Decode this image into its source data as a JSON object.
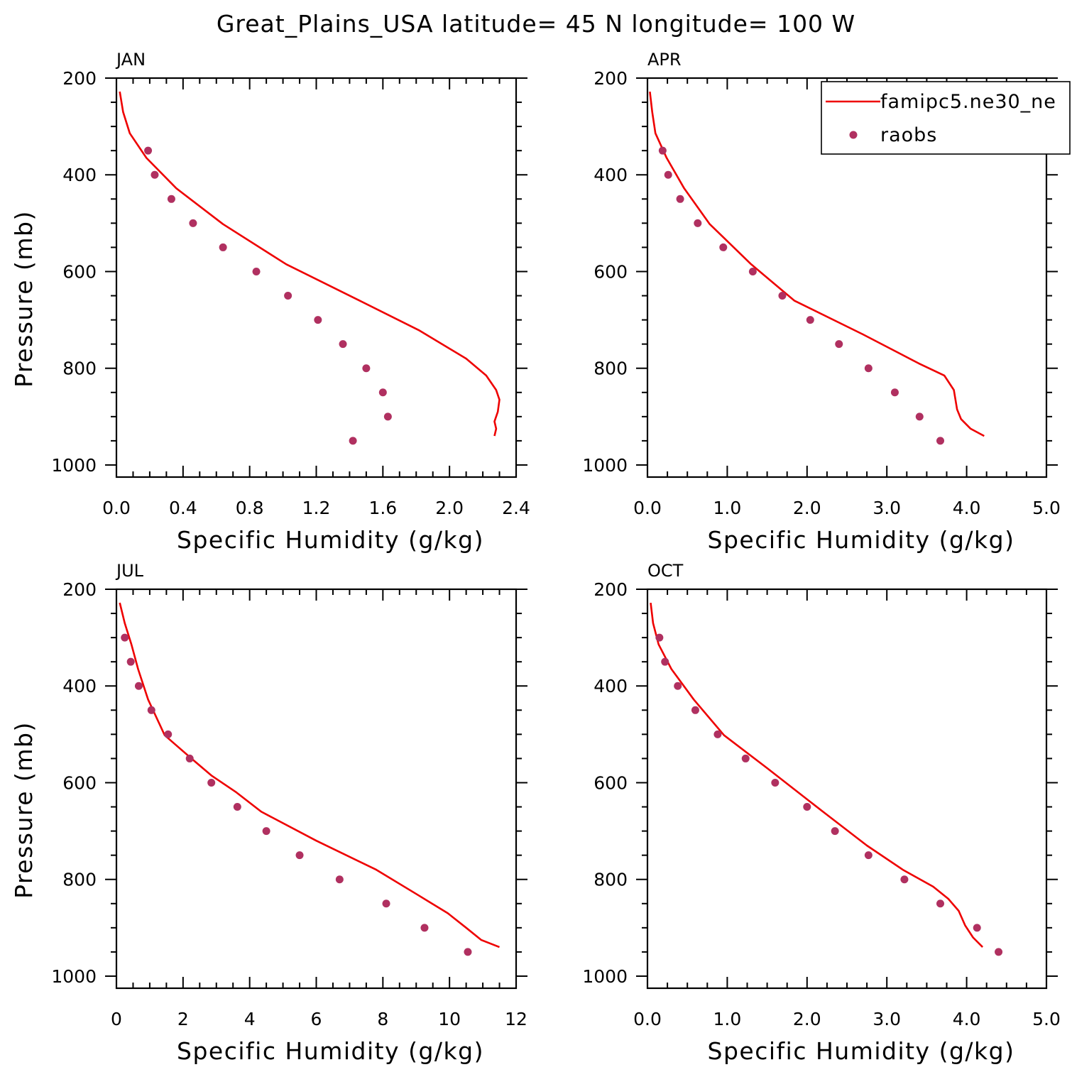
{
  "title": "Great_Plains_USA  latitude= 45 N longitude= 100 W",
  "colors": {
    "model": "#ee0000",
    "obs": "#b03060",
    "axis": "#000000"
  },
  "legend": {
    "placement": "top-right",
    "items": [
      {
        "label": "famipc5.ne30_ne",
        "style": "line"
      },
      {
        "label": "raobs",
        "style": "dot"
      }
    ]
  },
  "chart_data": [
    {
      "type": "line",
      "panel": "JAN",
      "xlabel": "Specific Humidity (g/kg)",
      "ylabel": "Pressure (mb)",
      "xlim": [
        0,
        2.4
      ],
      "ylim": [
        1000,
        200
      ],
      "y_inverted": true,
      "xticks": [
        0,
        0.4,
        0.8,
        1.2,
        1.6,
        2.0,
        2.4
      ],
      "xtick_labels": [
        "0.0",
        "0.4",
        "0.8",
        "1.2",
        "1.6",
        "2.0",
        "2.4"
      ],
      "yticks": [
        200,
        400,
        600,
        800,
        1000
      ],
      "ytick_labels": [
        "200",
        "400",
        "600",
        "800",
        "1000"
      ],
      "series": [
        {
          "name": "famipc5.ne30_ne",
          "kind": "line",
          "x": [
            0.02,
            0.04,
            0.08,
            0.18,
            0.36,
            0.64,
            1.02,
            1.46,
            1.82,
            2.1,
            2.22,
            2.28,
            2.3,
            2.29,
            2.27,
            2.28,
            2.27
          ],
          "y": [
            228,
            270,
            314,
            365,
            428,
            502,
            585,
            660,
            722,
            780,
            815,
            845,
            865,
            890,
            910,
            925,
            940
          ]
        },
        {
          "name": "raobs",
          "kind": "scatter",
          "x": [
            0.19,
            0.23,
            0.33,
            0.46,
            0.64,
            0.84,
            1.03,
            1.21,
            1.36,
            1.5,
            1.6,
            1.63,
            1.42
          ],
          "y": [
            350,
            400,
            450,
            500,
            550,
            600,
            650,
            700,
            750,
            800,
            850,
            900,
            950
          ]
        }
      ]
    },
    {
      "type": "line",
      "panel": "APR",
      "xlabel": "Specific Humidity (g/kg)",
      "ylabel": "",
      "xlim": [
        0,
        5
      ],
      "ylim": [
        1000,
        200
      ],
      "y_inverted": true,
      "xticks": [
        0,
        1,
        2,
        3,
        4,
        5
      ],
      "xtick_labels": [
        "0.0",
        "1.0",
        "2.0",
        "3.0",
        "4.0",
        "5.0"
      ],
      "yticks": [
        200,
        400,
        600,
        800,
        1000
      ],
      "ytick_labels": [
        "200",
        "400",
        "600",
        "800",
        "1000"
      ],
      "series": [
        {
          "name": "famipc5.ne30_ne",
          "kind": "line",
          "x": [
            0.03,
            0.06,
            0.1,
            0.24,
            0.46,
            0.78,
            1.3,
            1.84,
            2.7,
            3.4,
            3.72,
            3.84,
            3.88,
            3.93,
            4.05,
            4.22
          ],
          "y": [
            228,
            270,
            314,
            365,
            428,
            502,
            585,
            660,
            730,
            790,
            815,
            845,
            885,
            905,
            925,
            940
          ]
        },
        {
          "name": "raobs",
          "kind": "scatter",
          "x": [
            0.19,
            0.26,
            0.41,
            0.63,
            0.95,
            1.32,
            1.69,
            2.04,
            2.4,
            2.77,
            3.1,
            3.41,
            3.67
          ],
          "y": [
            350,
            400,
            450,
            500,
            550,
            600,
            650,
            700,
            750,
            800,
            850,
            900,
            950
          ]
        }
      ]
    },
    {
      "type": "line",
      "panel": "JUL",
      "xlabel": "Specific Humidity (g/kg)",
      "ylabel": "Pressure (mb)",
      "xlim": [
        0,
        12
      ],
      "ylim": [
        1000,
        200
      ],
      "y_inverted": true,
      "xticks": [
        0,
        2,
        4,
        6,
        8,
        10,
        12
      ],
      "xtick_labels": [
        "0",
        "2",
        "4",
        "6",
        "8",
        "10",
        "12"
      ],
      "yticks": [
        200,
        400,
        600,
        800,
        1000
      ],
      "ytick_labels": [
        "200",
        "400",
        "600",
        "800",
        "1000"
      ],
      "series": [
        {
          "name": "famipc5.ne30_ne",
          "kind": "line",
          "x": [
            0.1,
            0.25,
            0.45,
            0.65,
            0.95,
            1.45,
            2.25,
            2.85,
            3.6,
            4.35,
            6.0,
            7.8,
            9.0,
            9.95,
            10.5,
            10.95,
            11.5
          ],
          "y": [
            228,
            270,
            314,
            365,
            428,
            502,
            550,
            585,
            620,
            660,
            720,
            780,
            830,
            870,
            900,
            925,
            940
          ]
        },
        {
          "name": "raobs",
          "kind": "scatter",
          "x": [
            0.25,
            0.43,
            0.67,
            1.05,
            1.55,
            2.2,
            2.85,
            3.63,
            4.5,
            5.5,
            6.7,
            8.1,
            9.25,
            10.55
          ],
          "y": [
            300,
            350,
            400,
            450,
            500,
            550,
            600,
            650,
            700,
            750,
            800,
            850,
            900,
            950
          ]
        }
      ]
    },
    {
      "type": "line",
      "panel": "OCT",
      "xlabel": "Specific Humidity (g/kg)",
      "ylabel": "",
      "xlim": [
        0,
        5
      ],
      "ylim": [
        1000,
        200
      ],
      "y_inverted": true,
      "xticks": [
        0,
        1,
        2,
        3,
        4,
        5
      ],
      "xtick_labels": [
        "0.0",
        "1.0",
        "2.0",
        "3.0",
        "4.0",
        "5.0"
      ],
      "yticks": [
        200,
        400,
        600,
        800,
        1000
      ],
      "ytick_labels": [
        "200",
        "400",
        "600",
        "800",
        "1000"
      ],
      "series": [
        {
          "name": "famipc5.ne30_ne",
          "kind": "line",
          "x": [
            0.04,
            0.07,
            0.14,
            0.3,
            0.58,
            0.96,
            1.5,
            2.2,
            2.75,
            3.2,
            3.58,
            3.77,
            3.9,
            3.98,
            4.08,
            4.2
          ],
          "y": [
            228,
            270,
            314,
            365,
            428,
            502,
            570,
            660,
            730,
            780,
            815,
            840,
            865,
            895,
            920,
            940
          ]
        },
        {
          "name": "raobs",
          "kind": "scatter",
          "x": [
            0.15,
            0.22,
            0.38,
            0.6,
            0.88,
            1.23,
            1.6,
            2.0,
            2.35,
            2.77,
            3.22,
            3.67,
            4.13,
            4.4
          ],
          "y": [
            300,
            350,
            400,
            450,
            500,
            550,
            600,
            650,
            700,
            750,
            800,
            850,
            900,
            950
          ]
        }
      ]
    }
  ]
}
